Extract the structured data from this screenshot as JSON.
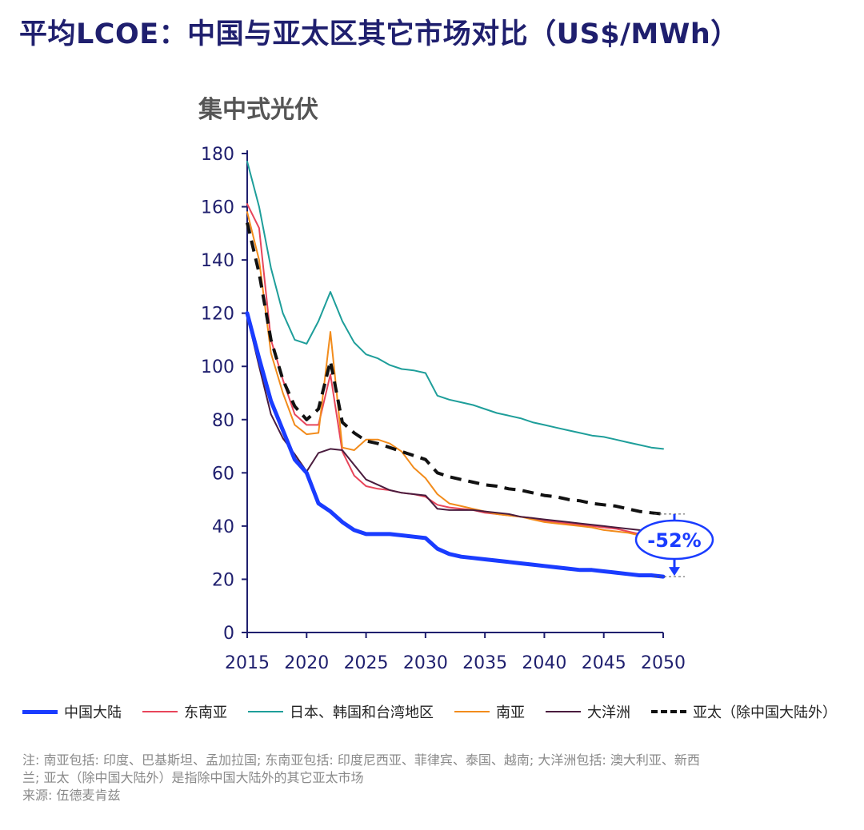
{
  "title": "平均LCOE：中国与亚太区其它市场对比（US$/MWh）",
  "subtitle": "集中式光伏",
  "annotation": {
    "label": "-52%"
  },
  "legend_items": [
    {
      "label": "中国大陆",
      "color": "#1a3cff",
      "style": "solid",
      "width": 5
    },
    {
      "label": "东南亚",
      "color": "#e8455a",
      "style": "solid",
      "width": 2
    },
    {
      "label": "日本、韩国和台湾地区",
      "color": "#1e9e9a",
      "style": "solid",
      "width": 2
    },
    {
      "label": "南亚",
      "color": "#f28c1c",
      "style": "solid",
      "width": 2
    },
    {
      "label": "大洋洲",
      "color": "#4a1c3e",
      "style": "solid",
      "width": 2
    },
    {
      "label": "亚太（除中国大陆外）",
      "color": "#111111",
      "style": "dashed",
      "width": 4
    }
  ],
  "notes": [
    "注: 南亚包括: 印度、巴基斯坦、孟加拉国; 东南亚包括: 印度尼西亚、菲律宾、泰国、越南; 大洋洲包括: 澳大利亚、新西",
    "兰; 亚太（除中国大陆外）是指除中国大陆外的其它亚太市场",
    "来源: 伍德麦肯兹"
  ],
  "chart_data": {
    "type": "line",
    "title": "集中式光伏",
    "x_ticks": [
      2015,
      2020,
      2025,
      2030,
      2035,
      2040,
      2045,
      2050
    ],
    "y_ticks": [
      0,
      20,
      40,
      60,
      80,
      100,
      120,
      140,
      160,
      180
    ],
    "xlim": [
      2015,
      2050
    ],
    "ylim": [
      0,
      180
    ],
    "grid": false,
    "legend_position": "bottom",
    "series": [
      {
        "name": "日本、韩国和台湾地区",
        "color": "#1e9e9a",
        "x": [
          2015,
          2016,
          2017,
          2018,
          2019,
          2020,
          2021,
          2022,
          2023,
          2024,
          2025,
          2026,
          2027,
          2028,
          2029,
          2030,
          2031,
          2032,
          2033,
          2034,
          2035,
          2036,
          2037,
          2038,
          2039,
          2040,
          2041,
          2042,
          2043,
          2044,
          2045,
          2046,
          2047,
          2048,
          2049,
          2050
        ],
        "values": [
          177,
          160,
          137,
          120,
          110,
          108.5,
          117,
          128,
          117,
          109,
          104.5,
          103,
          100.5,
          99,
          98.5,
          97.5,
          89,
          87.5,
          86.5,
          85.5,
          84,
          82.5,
          81.5,
          80.5,
          79,
          78,
          77,
          76,
          75,
          74,
          73.5,
          72.5,
          71.5,
          70.5,
          69.5,
          69
        ]
      },
      {
        "name": "东南亚",
        "color": "#e8455a",
        "x": [
          2015,
          2016,
          2017,
          2018,
          2019,
          2020,
          2021,
          2022,
          2023,
          2024,
          2025,
          2026,
          2027,
          2028,
          2029,
          2030,
          2031,
          2032,
          2033,
          2034,
          2035,
          2036,
          2037,
          2038,
          2039,
          2040,
          2041,
          2042,
          2043,
          2044,
          2045,
          2046,
          2047,
          2048,
          2049
        ],
        "values": [
          161,
          152,
          110,
          95,
          82,
          78,
          78,
          97,
          68,
          59,
          55,
          54,
          53.5,
          52.5,
          52,
          51,
          48,
          47,
          46.5,
          46,
          45,
          44.5,
          44,
          43.5,
          43,
          42,
          41.5,
          41,
          40.5,
          40,
          39.5,
          39,
          38,
          37,
          37
        ]
      },
      {
        "name": "南亚",
        "color": "#f28c1c",
        "x": [
          2015,
          2016,
          2017,
          2018,
          2019,
          2020,
          2021,
          2022,
          2023,
          2024,
          2025,
          2026,
          2027,
          2028,
          2029,
          2030,
          2031,
          2032,
          2033,
          2034,
          2035,
          2036,
          2037,
          2038,
          2039,
          2040,
          2041,
          2042,
          2043,
          2044,
          2045,
          2046,
          2047,
          2048,
          2049
        ],
        "values": [
          158,
          140,
          105,
          90,
          78,
          74.5,
          75,
          113,
          69.5,
          68.5,
          72.5,
          72.5,
          71,
          68,
          62,
          58,
          52,
          48.5,
          47.5,
          46.5,
          45.5,
          44.5,
          44,
          43.5,
          42.5,
          41.5,
          41,
          40.5,
          40,
          39.5,
          38.5,
          38,
          37.5,
          36.5,
          36
        ]
      },
      {
        "name": "大洋洲",
        "color": "#4a1c3e",
        "x": [
          2015,
          2016,
          2017,
          2018,
          2019,
          2020,
          2021,
          2022,
          2023,
          2024,
          2025,
          2026,
          2027,
          2028,
          2029,
          2030,
          2031,
          2032,
          2033,
          2034,
          2035,
          2036,
          2037,
          2038,
          2039,
          2040,
          2041,
          2042,
          2043,
          2044,
          2045,
          2046,
          2047,
          2048,
          2049
        ],
        "values": [
          119,
          100,
          82,
          73,
          67,
          60.5,
          67.5,
          69,
          68.5,
          63,
          57.5,
          55.5,
          53.5,
          52.5,
          52,
          51.5,
          46.5,
          46,
          46,
          46,
          45.5,
          45,
          44.5,
          43.5,
          43,
          42.5,
          42,
          41.5,
          41,
          40.5,
          40,
          39.5,
          39,
          38.5,
          38
        ]
      },
      {
        "name": "亚太（除中国大陆外）",
        "color": "#111111",
        "x": [
          2015,
          2016,
          2017,
          2018,
          2019,
          2020,
          2021,
          2022,
          2023,
          2024,
          2025,
          2026,
          2027,
          2028,
          2029,
          2030,
          2031,
          2032,
          2033,
          2034,
          2035,
          2036,
          2037,
          2038,
          2039,
          2040,
          2041,
          2042,
          2043,
          2044,
          2045,
          2046,
          2047,
          2048,
          2049,
          2050
        ],
        "values": [
          154,
          135,
          110,
          95,
          85,
          80,
          84,
          102,
          79,
          75,
          72,
          71,
          69.5,
          68,
          66.5,
          65,
          60,
          58.5,
          57.5,
          56.5,
          55.5,
          55,
          54,
          53.5,
          52.5,
          51.5,
          51,
          50,
          49.5,
          48.5,
          48,
          47.5,
          46.5,
          45.5,
          45,
          44.5
        ]
      },
      {
        "name": "中国大陆",
        "color": "#1a3cff",
        "x": [
          2015,
          2016,
          2017,
          2018,
          2019,
          2020,
          2021,
          2022,
          2023,
          2024,
          2025,
          2026,
          2027,
          2028,
          2029,
          2030,
          2031,
          2032,
          2033,
          2034,
          2035,
          2036,
          2037,
          2038,
          2039,
          2040,
          2041,
          2042,
          2043,
          2044,
          2045,
          2046,
          2047,
          2048,
          2049,
          2050
        ],
        "values": [
          120,
          103,
          87,
          76,
          65,
          60,
          48.5,
          45.5,
          41.5,
          38.5,
          37,
          37,
          37,
          36.5,
          36,
          35.5,
          31.5,
          29.5,
          28.5,
          28,
          27.5,
          27,
          26.5,
          26,
          25.5,
          25,
          24.5,
          24,
          23.5,
          23.5,
          23,
          22.5,
          22,
          21.5,
          21.5,
          21
        ]
      }
    ]
  }
}
